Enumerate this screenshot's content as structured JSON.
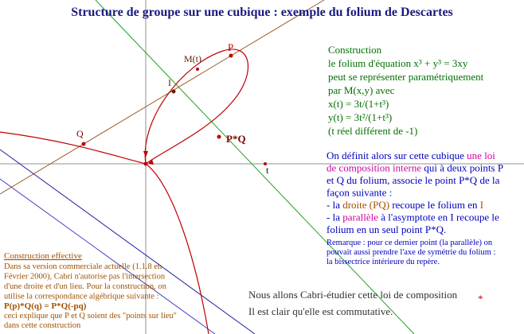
{
  "title": "Structure de groupe sur une cubique : exemple du folium de Descartes",
  "figure": {
    "points": [
      {
        "label": "P",
        "color": "#c00000"
      },
      {
        "label": "M(t)",
        "color": "#602000"
      },
      {
        "label": "I",
        "color": "#602000"
      },
      {
        "label": "Q",
        "color": "#800000"
      },
      {
        "label": "P*Q",
        "color": "#800000"
      },
      {
        "label": "t",
        "color": "#000000"
      }
    ]
  },
  "construction": {
    "color": "#007000",
    "lines": [
      "Construction",
      "le folium d'équation x³ + y³ = 3xy",
      "peut se représenter paramétriquement",
      "par M(x,y) avec",
      "x(t) = 3t/(1+t³)",
      "y(t) = 3t²/(1+t³)",
      "(t réel différent de -1)"
    ]
  },
  "definition": {
    "lines": [
      [
        {
          "text": "On définit alors sur cette cubique ",
          "color": "#0000c0"
        },
        {
          "text": "une loi",
          "color": "#d000a0"
        }
      ],
      [
        {
          "text": "de composition interne",
          "color": "#d000a0"
        },
        {
          "text": " qui à deux points P",
          "color": "#0000c0"
        }
      ],
      [
        {
          "text": "et Q du folium, associe le point P*Q de la",
          "color": "#0000c0"
        }
      ],
      [
        {
          "text": "façon suivante :",
          "color": "#0000c0"
        }
      ],
      [
        {
          "text": "- la ",
          "color": "#0000c0"
        },
        {
          "text": "droite (PQ)",
          "color": "#a05000"
        },
        {
          "text": " recoupe le folium en ",
          "color": "#0000c0"
        },
        {
          "text": "I",
          "color": "#a05000"
        }
      ],
      [
        {
          "text": "- la ",
          "color": "#0000c0"
        },
        {
          "text": "parallèle",
          "color": "#d000a0"
        },
        {
          "text": " à l'asymptote en I recoupe le",
          "color": "#0000c0"
        }
      ],
      [
        {
          "text": "folium en un seul point P*Q.",
          "color": "#0000c0"
        }
      ]
    ],
    "remark": [
      "Remarque : pour ce dernier point (la parallèle) on",
      "pouvait aussi prendre l'axe de symétrie du folium :",
      "la bissectrice intérieure du repère."
    ]
  },
  "effective": {
    "heading": "Construction effective",
    "lines": [
      "Dans sa version commerciale actuelle (1.1.8 en",
      "Février 2000), Cabri n'autorise pas l'intersection",
      "d'une droite et d'un lieu. Pour la construction, on",
      "utilise la correspondance algébrique suivante :"
    ],
    "formula": "P(p)*Q(q) = P*Q(-pq)",
    "after": [
      "ceci explique que P et Q soient des \"points sur lieu\"",
      "dans cette construction"
    ]
  },
  "footer": {
    "line1": "Nous allons Cabri-étudier cette loi de composition",
    "star": "*",
    "line2": "Il est clair qu'elle est commutative."
  }
}
